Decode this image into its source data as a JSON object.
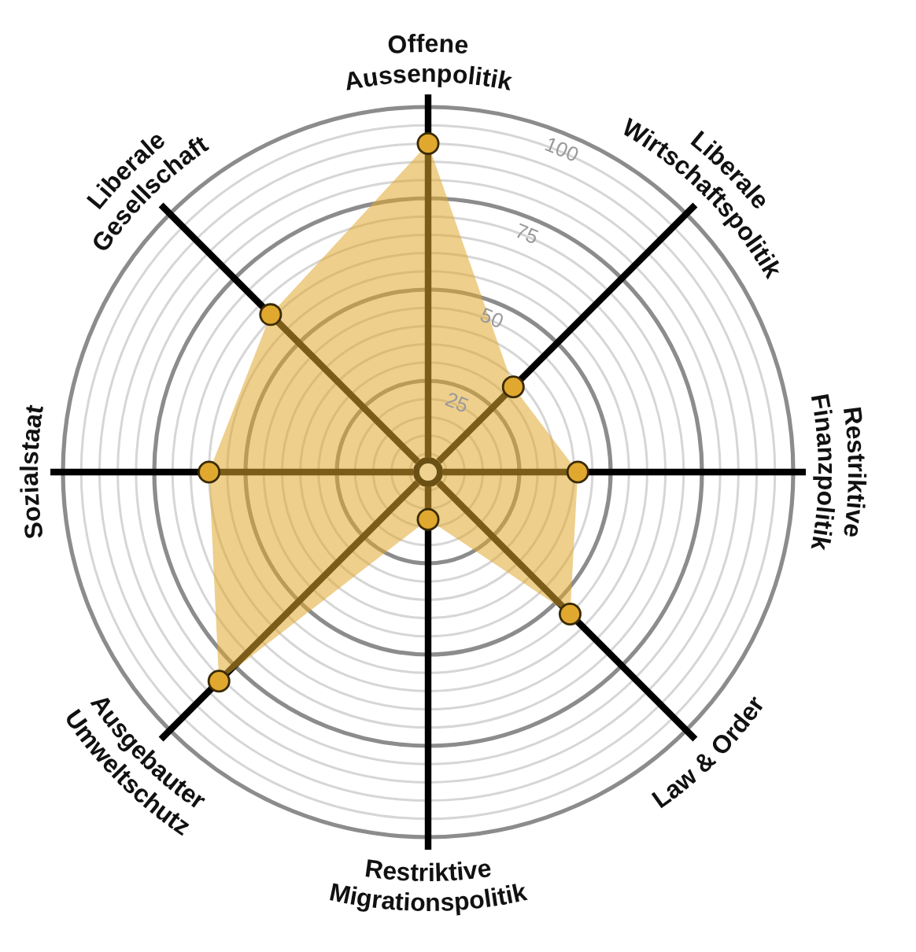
{
  "chart_data": {
    "type": "radar",
    "categories": [
      "Offene\nAussenpolitik",
      "Liberale\nWirtschaftspolitik",
      "Restriktive\nFinanzpolitik",
      "Law & Order",
      "Restriktive\nMigrationspolitik",
      "Ausgebauter\nUmweltschutz",
      "Sozialstaat",
      "Liberale\nGesellschaft"
    ],
    "series": [
      {
        "color": "#e0a82e",
        "values": [
          90,
          33,
          41,
          55,
          13,
          81,
          60,
          61
        ]
      }
    ],
    "ylim": [
      0,
      100
    ],
    "yticks": [
      25,
      50,
      75,
      100
    ],
    "grid": true,
    "marker": "circle"
  }
}
